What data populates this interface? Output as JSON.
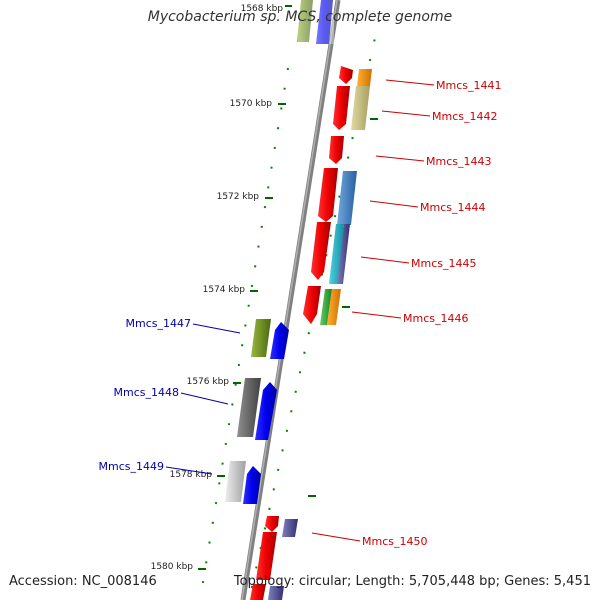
{
  "title": "Mycobacterium sp. MCS, complete genome",
  "footer": {
    "accession": "Accession: NC_008146",
    "stats": "Topology: circular; Length: 5,705,448 bp; Genes: 5,451"
  },
  "ticks": [
    "1568 kbp",
    "1570 kbp",
    "1572 kbp",
    "1574 kbp",
    "1576 kbp",
    "1578 kbp",
    "1580 kbp"
  ],
  "genes_right": [
    "Mmcs_1441",
    "Mmcs_1442",
    "Mmcs_1443",
    "Mmcs_1444",
    "Mmcs_1445",
    "Mmcs_1446",
    "Mmcs_1450"
  ],
  "genes_left": [
    "Mmcs_1447",
    "Mmcs_1448",
    "Mmcs_1449"
  ],
  "colors": {
    "backbone": "#808080",
    "gene_red": "#e00000",
    "gene_blue": "#0000ee",
    "cog_olive": "#6a8a20",
    "cog_gray": "#606060",
    "cog_light": "#c8c8c8",
    "cog_orange": "#f09000",
    "cog_khaki": "#c8c080",
    "cog_steel": "#4080c0",
    "cog_cyan": "#20b0c0",
    "cog_green": "#30b030",
    "cog_indigo": "#505090",
    "tick_green": "#006600",
    "label_red": "#cc0000",
    "label_blue": "#0000aa"
  }
}
